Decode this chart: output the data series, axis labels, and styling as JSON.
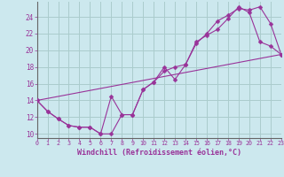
{
  "xlabel": "Windchill (Refroidissement éolien,°C)",
  "bg_color": "#cce8ee",
  "grid_color": "#aacccc",
  "line_color": "#993399",
  "line1_x": [
    0,
    1,
    2,
    3,
    4,
    5,
    6,
    7,
    8,
    9,
    10,
    11,
    12,
    13,
    14,
    15,
    16,
    17,
    18,
    19,
    20,
    21,
    22,
    23
  ],
  "line1_y": [
    14.0,
    12.7,
    11.8,
    11.0,
    10.8,
    10.8,
    10.0,
    14.5,
    12.3,
    12.3,
    15.3,
    16.2,
    18.0,
    16.5,
    18.3,
    21.0,
    21.8,
    22.5,
    23.8,
    25.2,
    24.5,
    21.0,
    20.5,
    19.5
  ],
  "line2_x": [
    0,
    1,
    2,
    3,
    4,
    5,
    6,
    7,
    8,
    9,
    10,
    11,
    12,
    13,
    14,
    15,
    16,
    17,
    18,
    19,
    20,
    21,
    22,
    23
  ],
  "line2_y": [
    14.0,
    12.7,
    11.8,
    11.0,
    10.8,
    10.8,
    10.0,
    10.0,
    12.3,
    12.3,
    15.3,
    16.2,
    17.5,
    18.0,
    18.3,
    20.8,
    22.0,
    23.5,
    24.2,
    25.0,
    24.8,
    25.2,
    23.2,
    19.5
  ],
  "line3_x": [
    0,
    23
  ],
  "line3_y": [
    14.0,
    19.5
  ],
  "xlim": [
    0,
    23
  ],
  "ylim": [
    9.5,
    25.8
  ],
  "xticks": [
    0,
    1,
    2,
    3,
    4,
    5,
    6,
    7,
    8,
    9,
    10,
    11,
    12,
    13,
    14,
    15,
    16,
    17,
    18,
    19,
    20,
    21,
    22,
    23
  ],
  "yticks": [
    10,
    12,
    14,
    16,
    18,
    20,
    22,
    24
  ],
  "markersize": 2.5
}
